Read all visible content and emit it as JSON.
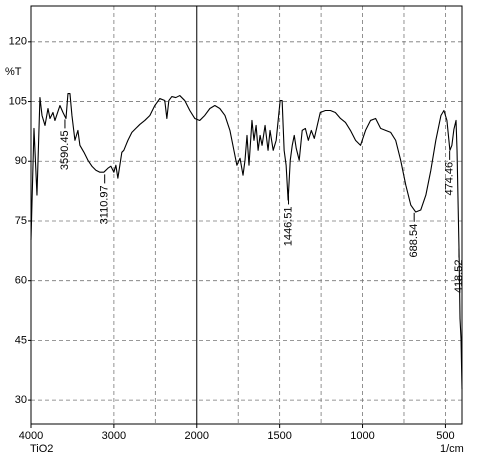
{
  "chart_data": {
    "type": "line",
    "sample": "TiO2",
    "x_unit": "1/cm",
    "y_label": "%T",
    "color": "#000000",
    "xlim": [
      4000,
      400
    ],
    "ylim": [
      24,
      129
    ],
    "x_scale_change": 2000,
    "xticks": [
      4000,
      3000,
      2000,
      1500,
      1000,
      500
    ],
    "x_minor_grid": [
      2500,
      1750,
      1250,
      750
    ],
    "yticks": [
      30,
      45,
      60,
      75,
      90,
      105,
      120
    ],
    "grid": true,
    "x": [
      4000,
      3964,
      3928,
      3892,
      3867,
      3831,
      3795,
      3771,
      3735,
      3711,
      3651,
      3614,
      3578,
      3554,
      3530,
      3506,
      3470,
      3434,
      3410,
      3361,
      3313,
      3265,
      3217,
      3169,
      3121,
      3072,
      3036,
      3000,
      2976,
      2952,
      2928,
      2904,
      2880,
      2831,
      2783,
      2735,
      2687,
      2627,
      2566,
      2506,
      2446,
      2386,
      2361,
      2337,
      2301,
      2253,
      2205,
      2145,
      2084,
      2024,
      1982,
      1952,
      1921,
      1891,
      1861,
      1830,
      1800,
      1776,
      1758,
      1739,
      1721,
      1709,
      1697,
      1685,
      1667,
      1655,
      1642,
      1630,
      1618,
      1606,
      1588,
      1570,
      1558,
      1539,
      1521,
      1509,
      1497,
      1485,
      1473,
      1461,
      1449,
      1436,
      1424,
      1412,
      1400,
      1382,
      1364,
      1345,
      1327,
      1309,
      1291,
      1273,
      1255,
      1224,
      1194,
      1164,
      1133,
      1103,
      1073,
      1042,
      1012,
      982,
      952,
      921,
      891,
      861,
      830,
      800,
      770,
      739,
      709,
      679,
      649,
      618,
      588,
      558,
      527,
      509,
      491,
      473,
      461,
      449,
      436,
      430,
      418,
      412,
      406,
      400
    ],
    "values": [
      70.25,
      98.25,
      81.5,
      106,
      101.5,
      99,
      103.25,
      100.75,
      102.25,
      100.25,
      104,
      102.25,
      100.75,
      107,
      107,
      101.5,
      95.25,
      97.75,
      94,
      92.25,
      90.25,
      88.75,
      87.75,
      87.25,
      87.25,
      88.25,
      88.75,
      87.25,
      89,
      85.75,
      89,
      92.25,
      92.75,
      95.25,
      97.25,
      98.25,
      99.25,
      100.25,
      101.5,
      104,
      105.75,
      105.25,
      100.75,
      105.25,
      106.25,
      106,
      106.5,
      105.25,
      102.75,
      100.75,
      100.25,
      101.5,
      103.25,
      104,
      103.25,
      101.5,
      97.75,
      92.75,
      89,
      90.75,
      86.5,
      90.25,
      96.5,
      89,
      100.25,
      95.25,
      99,
      92.75,
      96.5,
      94,
      99,
      92.75,
      97.75,
      92.75,
      95.25,
      100.25,
      105.25,
      105.25,
      92.75,
      89,
      80.25,
      90.25,
      94,
      96.5,
      93.25,
      90.25,
      97.75,
      98.25,
      95.25,
      97.75,
      95.75,
      99,
      102.25,
      102.75,
      102.75,
      102.25,
      100.75,
      99.75,
      97.75,
      95.25,
      94,
      97.75,
      100.25,
      100.75,
      98.25,
      97.75,
      97.25,
      95.25,
      90.25,
      84,
      79,
      77.25,
      77.75,
      81.5,
      87.75,
      95.25,
      101.5,
      102.75,
      100.25,
      92.75,
      94,
      98,
      100.25,
      92.75,
      67.75,
      50.5,
      45.5,
      32.75
    ],
    "peaks": [
      3590.45,
      3110.97,
      1446.51,
      688.54,
      474.46,
      418.52
    ]
  }
}
